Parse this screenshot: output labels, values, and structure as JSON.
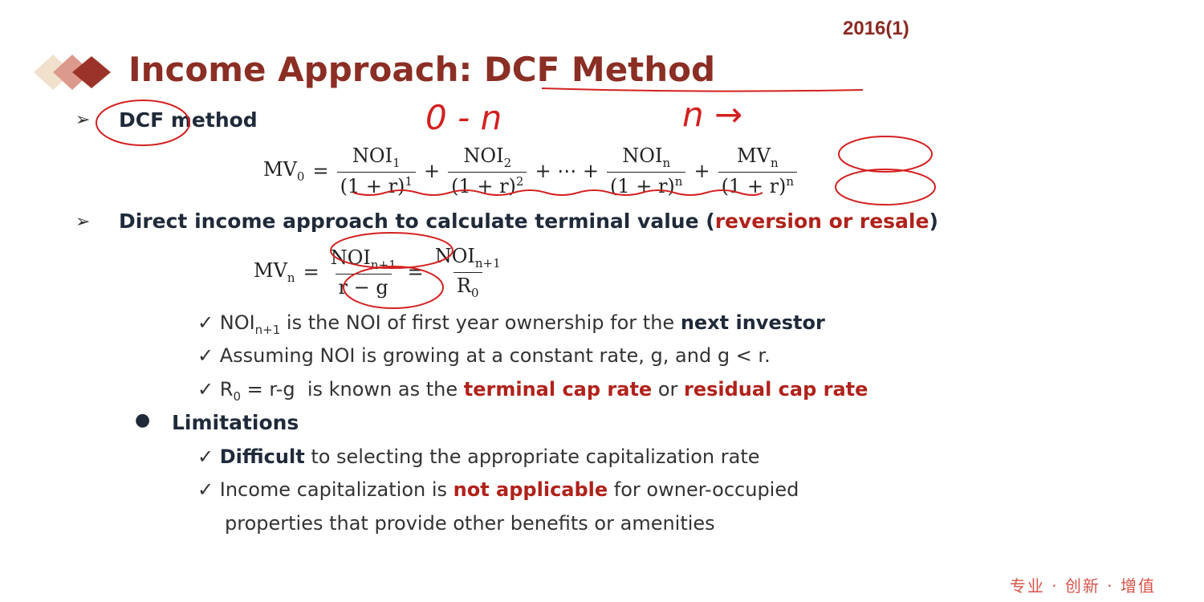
{
  "header": {
    "code": "2016(1)",
    "title": "Income Approach: DCF Method"
  },
  "bullets": {
    "dcf": "DCF method",
    "direct_prefix": "Direct income approach to calculate terminal value (",
    "direct_red": "reversion or resale",
    "direct_suffix": ")",
    "limitations": "Limitations"
  },
  "formula1": {
    "lhs": "MV",
    "lhs_sub": "0",
    "terms": [
      {
        "num": "NOI",
        "num_sub": "1",
        "den": "(1 + r)",
        "den_sup": "1"
      },
      {
        "num": "NOI",
        "num_sub": "2",
        "den": "(1 + r)",
        "den_sup": "2"
      },
      {
        "num": "NOI",
        "num_sub": "n",
        "den": "(1 + r)",
        "den_sup": "n"
      },
      {
        "num": "MV",
        "num_sub": "n",
        "den": "(1 + r)",
        "den_sup": "n"
      }
    ],
    "ellipsis": "+ ⋯ +"
  },
  "formula2": {
    "lhs": "MV",
    "lhs_sub": "n",
    "f1_num": "NOI",
    "f1_num_sub": "n+1",
    "f1_den": "r − g",
    "f2_num": "NOI",
    "f2_num_sub": "n+1",
    "f2_den": "R",
    "f2_den_sub": "0"
  },
  "checks": [
    {
      "a": "NOI",
      "a_sub": "n+1",
      "b": " is the NOI of first year ownership for the ",
      "bold": "next investor"
    },
    {
      "text": "Assuming NOI is growing at a constant rate, g, and g < r."
    },
    {
      "a": "R",
      "a_sub": "0",
      "b": " = r-g  is known as the ",
      "red1": "terminal cap rate",
      "mid": " or ",
      "red2": "residual cap rate"
    }
  ],
  "limitations": [
    {
      "bold": "Difficult",
      "rest": " to selecting the appropriate capitalization rate"
    },
    {
      "pre": "Income capitalization is ",
      "red": "not applicable",
      "rest": " for owner-occupied",
      "line2": "properties that provide other benefits or amenities"
    }
  ],
  "annotations": {
    "range": "0 - n",
    "after": "n →"
  },
  "footer": "专业 · 创新 · 增值",
  "colors": {
    "title": "#8b2e24",
    "accent_red": "#b0221b",
    "ink": "#d42020"
  }
}
